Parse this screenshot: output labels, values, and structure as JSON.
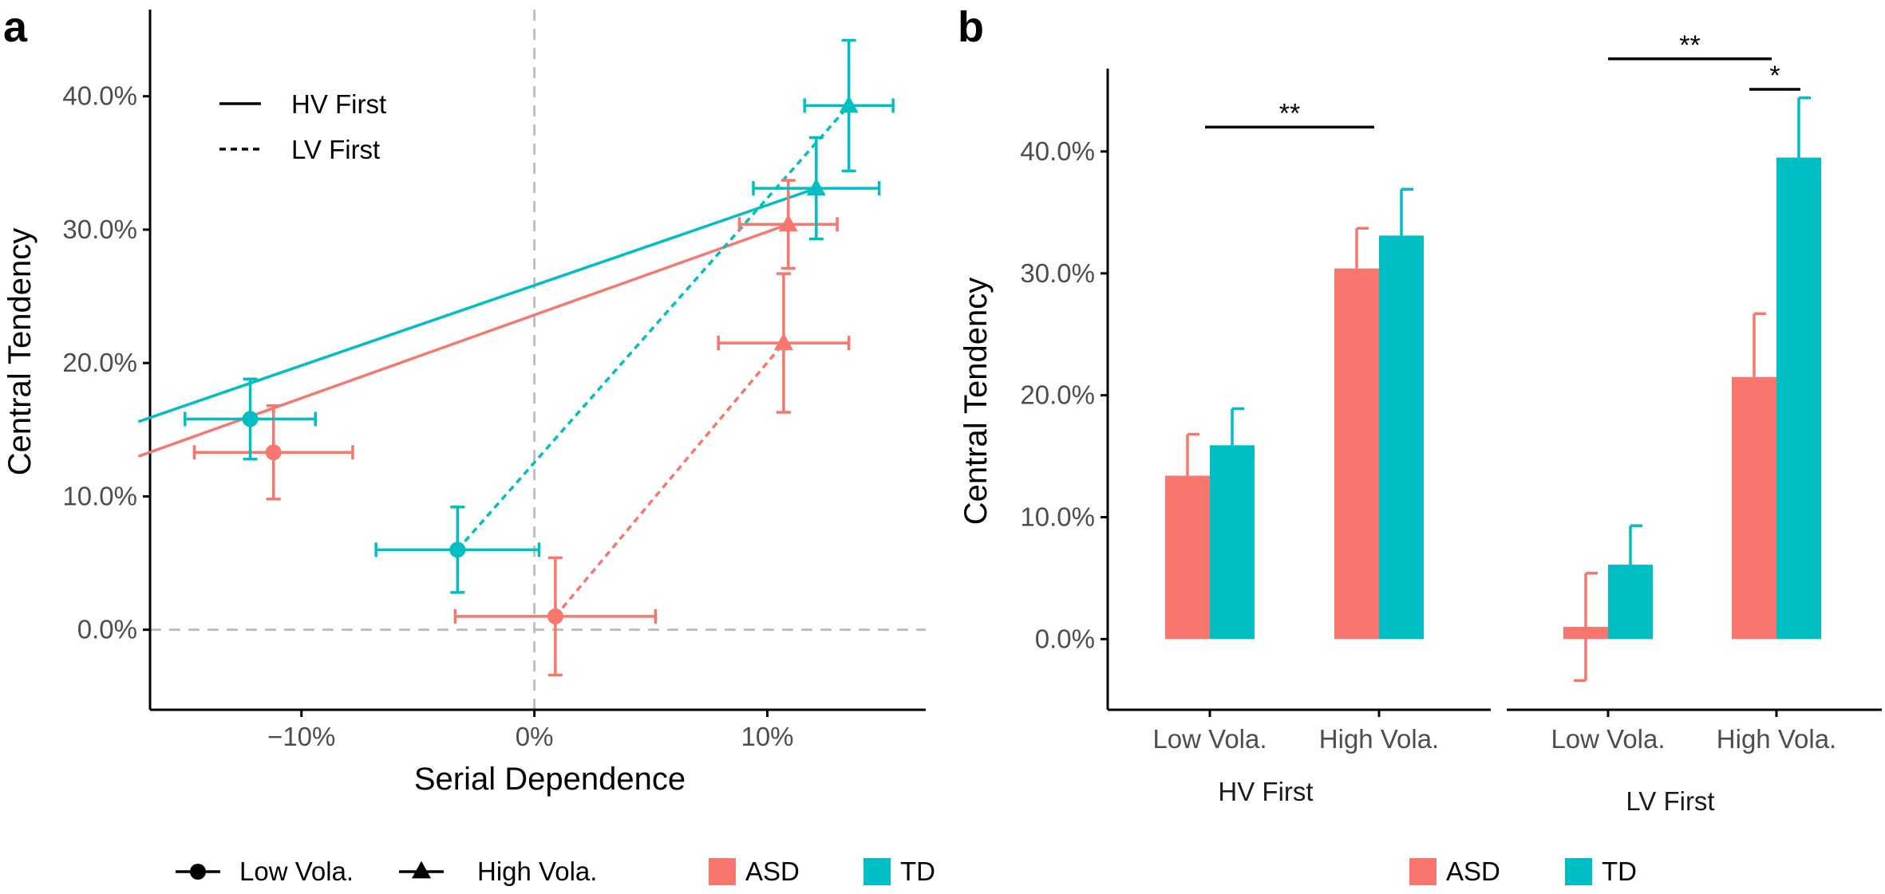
{
  "colors": {
    "ASD": "#F8766D",
    "TD": "#00BFC4",
    "ref_line": "#BEBEBE",
    "axis": "#000000"
  },
  "chart_data": [
    {
      "panel": "a",
      "type": "scatter",
      "xlabel": "Serial Dependence",
      "ylabel": "Central Tendency",
      "xlim": [
        -0.165,
        0.168
      ],
      "ylim": [
        -0.06,
        0.465
      ],
      "x_ticks": [
        {
          "value": -0.1,
          "label": "−10%"
        },
        {
          "value": 0.0,
          "label": "0%"
        },
        {
          "value": 0.1,
          "label": "10%"
        }
      ],
      "y_ticks": [
        {
          "value": 0.0,
          "label": "0.0%"
        },
        {
          "value": 0.1,
          "label": "10.0%"
        },
        {
          "value": 0.2,
          "label": "20.0%"
        },
        {
          "value": 0.3,
          "label": "30.0%"
        },
        {
          "value": 0.4,
          "label": "40.0%"
        }
      ],
      "ref_lines": {
        "x": 0,
        "y": 0
      },
      "points": [
        {
          "group": "ASD",
          "condition": "HV First",
          "volatility": "Low Vola.",
          "x": -0.112,
          "y": 0.133,
          "x_err": 0.034,
          "y_err": 0.035
        },
        {
          "group": "ASD",
          "condition": "HV First",
          "volatility": "High Vola.",
          "x": 0.109,
          "y": 0.304,
          "x_err": 0.021,
          "y_err": 0.033
        },
        {
          "group": "ASD",
          "condition": "LV First",
          "volatility": "Low Vola.",
          "x": 0.009,
          "y": 0.01,
          "x_err": 0.043,
          "y_err": 0.044
        },
        {
          "group": "ASD",
          "condition": "LV First",
          "volatility": "High Vola.",
          "x": 0.107,
          "y": 0.215,
          "x_err": 0.028,
          "y_err": 0.052
        },
        {
          "group": "TD",
          "condition": "HV First",
          "volatility": "Low Vola.",
          "x": -0.122,
          "y": 0.158,
          "x_err": 0.028,
          "y_err": 0.03
        },
        {
          "group": "TD",
          "condition": "HV First",
          "volatility": "High Vola.",
          "x": 0.121,
          "y": 0.331,
          "x_err": 0.027,
          "y_err": 0.038
        },
        {
          "group": "TD",
          "condition": "LV First",
          "volatility": "Low Vola.",
          "x": -0.033,
          "y": 0.06,
          "x_err": 0.035,
          "y_err": 0.032
        },
        {
          "group": "TD",
          "condition": "LV First",
          "volatility": "High Vola.",
          "x": 0.135,
          "y": 0.393,
          "x_err": 0.019,
          "y_err": 0.049
        }
      ],
      "lines": [
        {
          "group": "ASD",
          "condition": "HV First",
          "style": "solid",
          "x": [
            -0.17,
            0.109
          ],
          "y": [
            0.13,
            0.304
          ]
        },
        {
          "group": "TD",
          "condition": "HV First",
          "style": "solid",
          "x": [
            -0.17,
            0.121
          ],
          "y": [
            0.156,
            0.331
          ]
        },
        {
          "group": "ASD",
          "condition": "LV First",
          "style": "dashed",
          "x": [
            0.009,
            0.107
          ],
          "y": [
            0.01,
            0.215
          ]
        },
        {
          "group": "TD",
          "condition": "LV First",
          "style": "dashed",
          "x": [
            -0.033,
            0.135
          ],
          "y": [
            0.06,
            0.393
          ]
        }
      ],
      "linetype_legend": [
        {
          "label": "HV First",
          "style": "solid"
        },
        {
          "label": "LV First",
          "style": "dashed"
        }
      ]
    },
    {
      "panel": "b",
      "type": "bar",
      "ylabel": "Central Tendency",
      "ylim": [
        -0.058,
        0.468
      ],
      "y_ticks": [
        {
          "value": 0.0,
          "label": "0.0%"
        },
        {
          "value": 0.1,
          "label": "10.0%"
        },
        {
          "value": 0.2,
          "label": "20.0%"
        },
        {
          "value": 0.3,
          "label": "30.0%"
        },
        {
          "value": 0.4,
          "label": "40.0%"
        }
      ],
      "facets": [
        {
          "label": "HV First",
          "categories": [
            "Low Vola.",
            "High Vola."
          ],
          "series": [
            {
              "name": "ASD",
              "values": [
                0.134,
                0.304
              ],
              "errors": [
                0.034,
                0.033
              ]
            },
            {
              "name": "TD",
              "values": [
                0.159,
                0.331
              ],
              "errors": [
                0.03,
                0.038
              ]
            }
          ],
          "significance": [
            {
              "label": "**",
              "from": "Low Vola.",
              "to": "High Vola.",
              "y": 0.42
            }
          ]
        },
        {
          "label": "LV First",
          "categories": [
            "Low Vola.",
            "High Vola."
          ],
          "series": [
            {
              "name": "ASD",
              "values": [
                0.01,
                0.215
              ],
              "errors": [
                0.044,
                0.052
              ]
            },
            {
              "name": "TD",
              "values": [
                0.061,
                0.395
              ],
              "errors": [
                0.032,
                0.049
              ]
            }
          ],
          "significance": [
            {
              "label": "**",
              "from": "Low Vola.",
              "to": "High Vola.",
              "y": 0.476
            },
            {
              "label": "*",
              "from": "High Vola. ASD",
              "to": "High Vola. TD",
              "y": 0.451
            }
          ]
        }
      ]
    }
  ],
  "legend_a": {
    "shapes": [
      {
        "label": "Low Vola.",
        "shape": "circle"
      },
      {
        "label": "High Vola.",
        "shape": "triangle"
      }
    ],
    "fills": [
      {
        "label": "ASD",
        "color": "#F8766D"
      },
      {
        "label": "TD",
        "color": "#00BFC4"
      }
    ]
  },
  "legend_b": {
    "fills": [
      {
        "label": "ASD",
        "color": "#F8766D"
      },
      {
        "label": "TD",
        "color": "#00BFC4"
      }
    ]
  }
}
